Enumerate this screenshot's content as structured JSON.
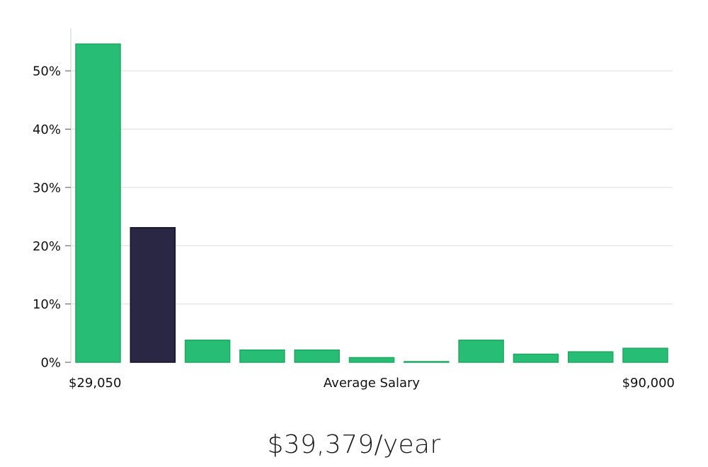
{
  "chart_data": {
    "type": "bar",
    "categories": [
      "1",
      "2",
      "3",
      "4",
      "5",
      "6",
      "7",
      "8",
      "9",
      "10",
      "11"
    ],
    "values": [
      54.6,
      23.1,
      3.8,
      2.1,
      2.1,
      0.8,
      0.1,
      3.8,
      1.4,
      1.8,
      2.4
    ],
    "highlight_index": 1,
    "ylim": [
      0,
      57.3
    ],
    "yticks": [
      0,
      10,
      20,
      30,
      40,
      50
    ],
    "ytick_format": "{v}%",
    "x_start_label": "$29,050",
    "x_end_label": "$90,000",
    "xlabel": "Average Salary",
    "grid": "horizontal",
    "colors": {
      "bar": "#27bd74",
      "bar_edge": "#1fa862",
      "highlight": "#2a2745",
      "highlight_edge": "#11101f",
      "grid": "#dddddd",
      "axis": "#cccccc"
    }
  },
  "summary": {
    "salary_text": "$39,379/year"
  }
}
